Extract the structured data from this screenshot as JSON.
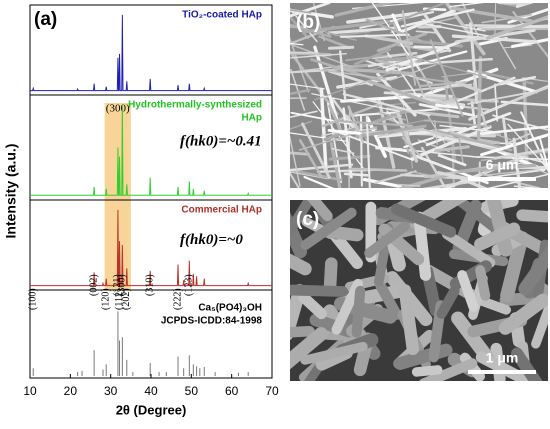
{
  "figure": {
    "panel_label": "(a)",
    "ylabel": "Intensity (a.u.)",
    "highlight": {
      "xrange": [
        28.5,
        35
      ],
      "label": "(300)",
      "color": "#f7c97e"
    }
  },
  "chart_data": [
    {
      "type": "line",
      "title": [
        "TiO₂-coated HAp"
      ],
      "title_color": "#1a1aa8",
      "xlim": [
        10,
        70
      ],
      "ylim": [
        0,
        110
      ],
      "series": [
        {
          "name": "TiO₂-coated HAp",
          "color": "#1f1fb0",
          "x": [
            10,
            10.65,
            10.8,
            10.95,
            21.65,
            21.8,
            21.95,
            25.75,
            25.9,
            26.05,
            28.75,
            28.9,
            29.05,
            31.65,
            31.8,
            31.95,
            32.05,
            32.2,
            32.35,
            32.75,
            32.9,
            33.05,
            33.85,
            34,
            34.15,
            39.65,
            39.8,
            39.95,
            46.55,
            46.7,
            46.85,
            49.35,
            49.5,
            49.65,
            53.05,
            53.2,
            53.35,
            70
          ],
          "values": [
            3,
            3,
            6,
            3,
            3,
            5,
            3,
            3,
            12,
            3,
            3,
            8,
            3,
            3,
            45,
            3,
            3,
            50,
            3,
            3,
            100,
            3,
            3,
            15,
            3,
            3,
            18,
            3,
            3,
            10,
            3,
            3,
            12,
            3,
            3,
            6,
            3,
            3
          ]
        }
      ]
    },
    {
      "type": "line",
      "title": [
        "Hydrothermally-synthesized",
        "HAp"
      ],
      "title_color": "#22c422",
      "xlim": [
        10,
        70
      ],
      "ylim": [
        0,
        110
      ],
      "annotations": [
        {
          "text": "f(hk0)=~0.41"
        }
      ],
      "series": [
        {
          "name": "Hydrothermally-synthesized HAp",
          "color": "#2fcf2f",
          "x": [
            10,
            25.75,
            25.9,
            26.05,
            28.75,
            28.9,
            29.05,
            31.65,
            31.8,
            31.95,
            32.05,
            32.2,
            32.35,
            32.75,
            32.9,
            33.05,
            33.85,
            34,
            34.15,
            39.65,
            39.8,
            39.95,
            46.55,
            46.7,
            46.85,
            49.35,
            49.5,
            49.65,
            50.35,
            50.5,
            50.65,
            53.05,
            53.2,
            53.35,
            63.95,
            64.1,
            64.25,
            70
          ],
          "values": [
            3,
            3,
            12,
            3,
            3,
            10,
            3,
            3,
            55,
            3,
            3,
            45,
            3,
            3,
            100,
            3,
            3,
            15,
            3,
            3,
            22,
            3,
            3,
            12,
            3,
            3,
            18,
            3,
            3,
            10,
            3,
            3,
            8,
            3,
            3,
            5,
            3,
            3
          ]
        }
      ]
    },
    {
      "type": "line",
      "title": [
        "Commercial HAp"
      ],
      "title_color": "#b0302a",
      "xlim": [
        10,
        70
      ],
      "ylim": [
        0,
        110
      ],
      "annotations": [
        {
          "text": "f(hk0)=~0"
        }
      ],
      "series": [
        {
          "name": "Commercial HAp",
          "color": "#b8332a",
          "x": [
            10,
            25.75,
            25.9,
            26.05,
            27.95,
            28.1,
            28.25,
            28.75,
            28.9,
            29.05,
            31.65,
            31.8,
            31.95,
            32.05,
            32.2,
            32.35,
            32.75,
            32.9,
            33.05,
            33.85,
            34,
            34.15,
            39.65,
            39.8,
            39.95,
            46.55,
            46.7,
            46.85,
            47.95,
            48.1,
            48.25,
            49.35,
            49.5,
            49.65,
            50.35,
            50.5,
            50.65,
            51.15,
            51.3,
            51.45,
            53.05,
            53.2,
            53.35,
            63.95,
            64.1,
            64.25,
            70
          ],
          "values": [
            3,
            3,
            20,
            3,
            3,
            6,
            3,
            3,
            12,
            3,
            3,
            100,
            3,
            3,
            60,
            3,
            3,
            55,
            3,
            3,
            25,
            3,
            3,
            22,
            3,
            3,
            30,
            3,
            3,
            10,
            3,
            3,
            35,
            3,
            3,
            18,
            3,
            3,
            15,
            3,
            3,
            12,
            3,
            3,
            6,
            3,
            3
          ]
        }
      ]
    },
    {
      "type": "stem",
      "title": [
        "Ca₅(PO4)₃OH",
        "JCPDS-ICDD:84-1998"
      ],
      "title_color": "#000000",
      "xlim": [
        10,
        70
      ],
      "ylim": [
        0,
        130
      ],
      "xticks": [
        10,
        20,
        30,
        40,
        50,
        60,
        70
      ],
      "xlabel": "2θ (Degree)",
      "peak_labels": [
        {
          "x": 10.8,
          "label": "(100)"
        },
        {
          "x": 25.9,
          "label": "(002)"
        },
        {
          "x": 28.9,
          "label": "(120)"
        },
        {
          "x": 31.8,
          "label": "(121)"
        },
        {
          "x": 32.2,
          "label": "(112)"
        },
        {
          "x": 32.9,
          "label": "(300)"
        },
        {
          "x": 34.0,
          "label": "(202)"
        },
        {
          "x": 39.8,
          "label": "(310)"
        },
        {
          "x": 46.7,
          "label": "(222)"
        },
        {
          "x": 49.5,
          "label": "(123)"
        }
      ],
      "series": [
        {
          "name": "Ca₅(PO4)₃OH",
          "color": "#777777",
          "x": [
            10.8,
            21.8,
            22.9,
            25.9,
            28.1,
            28.9,
            31.8,
            32.2,
            32.9,
            34.0,
            35.5,
            39.8,
            42.0,
            43.8,
            46.7,
            48.1,
            49.5,
            50.5,
            51.3,
            52.1,
            53.2,
            55.9,
            61.7,
            64.1
          ],
          "values": [
            12,
            6,
            8,
            40,
            10,
            18,
            100,
            55,
            60,
            25,
            6,
            20,
            6,
            6,
            30,
            12,
            32,
            18,
            15,
            12,
            14,
            6,
            5,
            6
          ]
        }
      ]
    }
  ],
  "images": [
    {
      "label": "(b)",
      "scale": "6 μm"
    },
    {
      "label": "(c)",
      "scale": "1 μm"
    }
  ]
}
